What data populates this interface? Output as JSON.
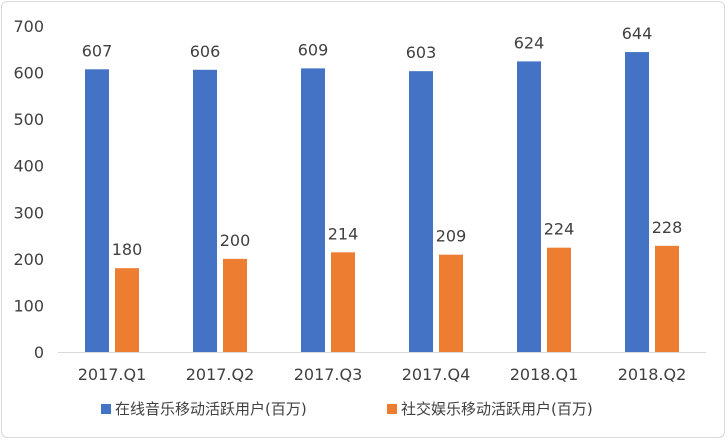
{
  "chart_data": {
    "type": "bar",
    "categories": [
      "2017.Q1",
      "2017.Q2",
      "2017.Q3",
      "2017.Q4",
      "2018.Q1",
      "2018.Q2"
    ],
    "series": [
      {
        "name": "在线音乐移动活跃用户(百万)",
        "values": [
          607,
          606,
          609,
          603,
          624,
          644
        ],
        "color": "#4472C4"
      },
      {
        "name": "社交娱乐移动活跃用户(百万)",
        "values": [
          180,
          200,
          214,
          209,
          224,
          228
        ],
        "color": "#ED7D31"
      }
    ],
    "title": "",
    "xlabel": "",
    "ylabel": "",
    "ylim": [
      0,
      700
    ],
    "yticks": [
      0,
      100,
      200,
      300,
      400,
      500,
      600,
      700
    ],
    "grid": false,
    "data_labels": true,
    "legend_position": "bottom"
  }
}
